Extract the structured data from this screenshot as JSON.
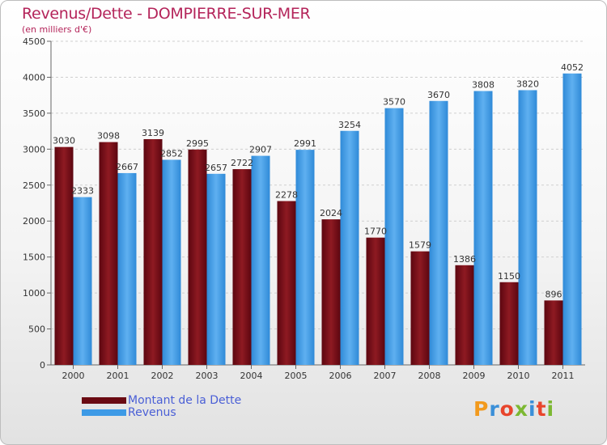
{
  "title": "Revenus/Dette - DOMPIERRE-SUR-MER",
  "subtitle": "(en milliers d'€)",
  "colors": {
    "dette": "#7a0c14",
    "revenus": "#3d9ae6",
    "title": "#b4245a",
    "legend_text": "#4a5fd6"
  },
  "chart_data": {
    "type": "bar",
    "title": "Revenus/Dette - DOMPIERRE-SUR-MER",
    "ylabel": "(en milliers d'€)",
    "xlabel": "",
    "ylim": [
      0,
      4500
    ],
    "yticks": [
      0,
      500,
      1000,
      1500,
      2000,
      2500,
      3000,
      3500,
      4000,
      4500
    ],
    "grid": true,
    "legend_position": "bottom-left",
    "categories": [
      "2000",
      "2001",
      "2002",
      "2003",
      "2004",
      "2005",
      "2006",
      "2007",
      "2008",
      "2009",
      "2010",
      "2011"
    ],
    "series": [
      {
        "name": "Montant de la Dette",
        "values": [
          3030,
          3098,
          3139,
          2995,
          2722,
          2278,
          2024,
          1770,
          1579,
          1386,
          1150,
          896
        ]
      },
      {
        "name": "Revenus",
        "values": [
          2333,
          2667,
          2852,
          2657,
          2907,
          2991,
          3254,
          3570,
          3670,
          3808,
          3820,
          4052
        ]
      }
    ]
  },
  "legend": {
    "items": [
      {
        "label": "Montant de la Dette"
      },
      {
        "label": "Revenus"
      }
    ]
  },
  "logo": {
    "text": "Proxiti"
  }
}
